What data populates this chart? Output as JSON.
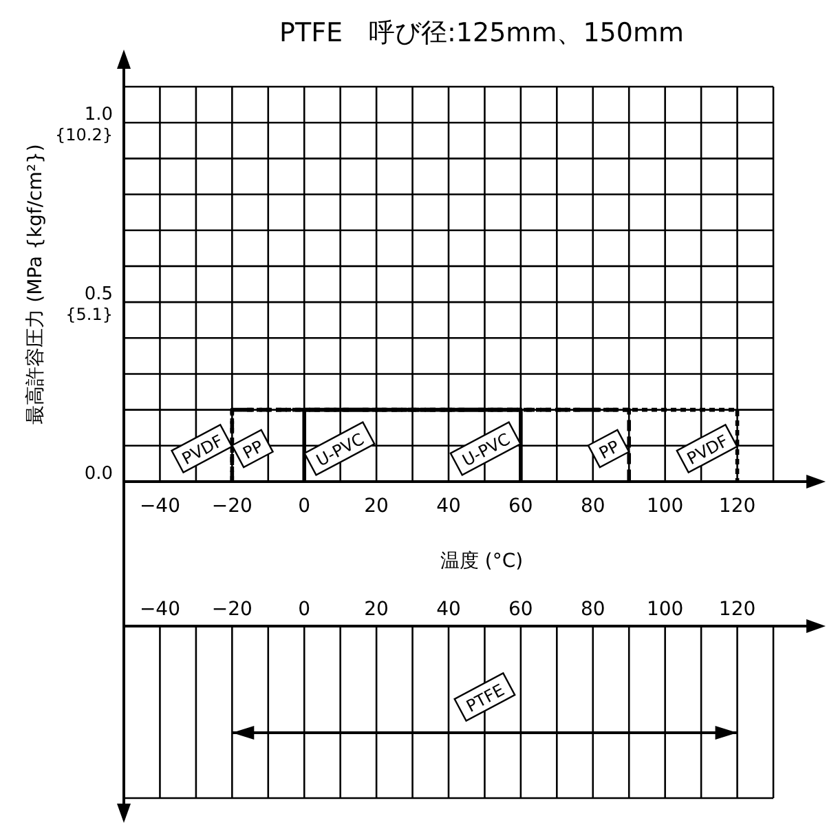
{
  "chart_data": [
    {
      "type": "line",
      "title": "PTFE　呼び径:125mm、150mm",
      "xlabel": "温度 (°C)",
      "y2label": "最高許容圧力 (MPa {kgf/cm²})",
      "xlim": [
        -50,
        130
      ],
      "xticks": [
        {
          "value": -50,
          "label": null
        },
        -40,
        {
          "value": -30,
          "label": null
        },
        -20,
        {
          "value": -10,
          "label": null
        },
        0,
        {
          "value": 10,
          "label": null
        },
        20,
        {
          "value": 30,
          "label": null
        },
        40,
        {
          "value": 50,
          "label": null
        },
        60,
        {
          "value": 70,
          "label": null
        },
        80,
        {
          "value": 90,
          "label": null
        },
        100,
        {
          "value": 110,
          "label": null
        },
        120,
        {
          "value": 130,
          "label": null
        }
      ],
      "ylim": [
        0,
        1.1
      ],
      "yticks": [
        {
          "value": 0,
          "label": "0.0"
        },
        {
          "value": 0.1,
          "label": null
        },
        {
          "value": 0.2,
          "label": null
        },
        {
          "value": 0.3,
          "label": null
        },
        {
          "value": 0.4,
          "label": null
        },
        {
          "value": 0.5,
          "label": "0.5"
        },
        {
          "value": 0.6,
          "label": null
        },
        {
          "value": 0.7,
          "label": null
        },
        {
          "value": 0.8,
          "label": null
        },
        {
          "value": 0.9,
          "label": null
        },
        {
          "value": 1.0,
          "label": "1.0"
        },
        {
          "value": 1.1,
          "label": null
        }
      ],
      "y2lim": [
        0,
        11.22
      ],
      "y2ticks": [
        {
          "value": 5.1,
          "label": "{5.1}"
        },
        {
          "value": 10.2,
          "label": "{10.2}"
        }
      ],
      "grid": true,
      "series": [
        {
          "name": "PP",
          "color": "#000000",
          "line_style": "dashed",
          "x": [
            -20,
            -20,
            90,
            90
          ],
          "values": [
            0,
            0.2,
            0.2,
            0
          ]
        },
        {
          "name": "U-PVC",
          "color": "#000000",
          "line_style": "solid",
          "x": [
            0,
            0,
            60,
            60
          ],
          "values": [
            0,
            0.2,
            0.2,
            0
          ]
        },
        {
          "name": "PVDF",
          "color": "#000000",
          "line_style": "dotted",
          "x": [
            -20,
            -20,
            120,
            120
          ],
          "values": [
            0,
            0.2,
            0.2,
            0
          ]
        }
      ]
    },
    {
      "type": "bar",
      "orientation": "horizontal",
      "categories": [
        null
      ],
      "base": [
        -20
      ],
      "xlim": [
        -50,
        130
      ],
      "xticks": [
        {
          "value": -50,
          "label": null
        },
        -40,
        {
          "value": -30,
          "label": null
        },
        -20,
        {
          "value": -10,
          "label": null
        },
        0,
        {
          "value": 10,
          "label": null
        },
        20,
        {
          "value": 30,
          "label": null
        },
        40,
        {
          "value": 50,
          "label": null
        },
        60,
        {
          "value": 70,
          "label": null
        },
        80,
        {
          "value": 90,
          "label": null
        },
        100,
        {
          "value": 110,
          "label": null
        },
        120,
        {
          "value": 130,
          "label": null
        }
      ],
      "grid": "x",
      "tick_labels": "x",
      "values": [
        140
      ],
      "color": "#000000",
      "annotations": [
        {
          "text": "PTFE",
          "x": 50
        }
      ]
    }
  ]
}
